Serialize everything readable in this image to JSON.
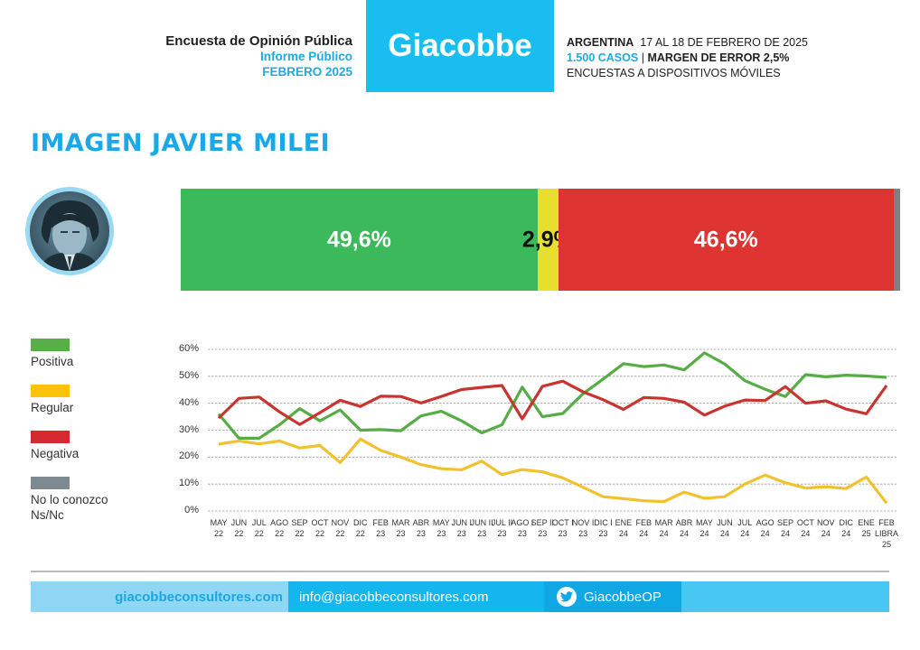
{
  "header": {
    "survey_title": "Encuesta de Opinión Pública",
    "report_type": "Informe Público",
    "report_date": "FEBRERO 2025",
    "brand": "Giacobbe",
    "country": "ARGENTINA",
    "field_dates": "17 AL 18 DE FEBRERO DE 2025",
    "cases": "1.500 CASOS",
    "separator": "|",
    "margin_error": "MARGEN DE ERROR 2,5%",
    "method": "ENCUESTAS A DISPOSITIVOS MÓVILES"
  },
  "page_title": "IMAGEN JAVIER MILEI",
  "colors": {
    "brand_blue": "#19bdf0",
    "positiva": "#3cb95a",
    "regular": "#e8de2e",
    "negativa": "#dd3431",
    "ns": "#808080",
    "line_positiva": "#56ad45",
    "line_regular": "#f2c12e",
    "line_negativa": "#c8342f"
  },
  "summary_bar": {
    "segments": [
      {
        "name": "Positiva",
        "value": 49.6,
        "label": "49,6%",
        "color": "#3cb95a",
        "text_color": "#ffffff"
      },
      {
        "name": "Regular",
        "value": 2.9,
        "label": "2,9%",
        "color": "#e8de2e",
        "text_color": "#111111"
      },
      {
        "name": "Negativa",
        "value": 46.6,
        "label": "46,6%",
        "color": "#dd3431",
        "text_color": "#ffffff"
      },
      {
        "name": "No lo conozco Ns/Nc",
        "value": 0.9,
        "label": "",
        "color": "#808080",
        "text_color": "#ffffff"
      }
    ]
  },
  "legend": [
    {
      "label": "Positiva",
      "color": "#5aae4a"
    },
    {
      "label": "Regular",
      "color": "#fbc30a"
    },
    {
      "label": "Negativa",
      "color": "#d42a2f"
    },
    {
      "label": "No lo conozco\nNs/Nc",
      "color": "#7d8a92"
    }
  ],
  "chart_data": {
    "type": "line",
    "title": "IMAGEN JAVIER MILEI",
    "xlabel": "",
    "ylabel": "",
    "ylim": [
      0,
      60
    ],
    "yticks": [
      "0%",
      "10%",
      "20%",
      "30%",
      "40%",
      "50%",
      "60%"
    ],
    "grid": true,
    "legend_position": "left",
    "categories": [
      [
        "MAY",
        "22"
      ],
      [
        "JUN",
        "22"
      ],
      [
        "JUL",
        "22"
      ],
      [
        "AGO",
        "22"
      ],
      [
        "SEP",
        "22"
      ],
      [
        "OCT",
        "22"
      ],
      [
        "NOV",
        "22"
      ],
      [
        "DIC",
        "22"
      ],
      [
        "FEB",
        "23"
      ],
      [
        "MAR",
        "23"
      ],
      [
        "ABR",
        "23"
      ],
      [
        "MAY",
        "23"
      ],
      [
        "JUN I",
        "23"
      ],
      [
        "JUN II",
        "23"
      ],
      [
        "JUL II",
        "23"
      ],
      [
        "AGO I",
        "23"
      ],
      [
        "SEP II",
        "23"
      ],
      [
        "OCT I",
        "23"
      ],
      [
        "NOV I",
        "23"
      ],
      [
        "DIC I",
        "23"
      ],
      [
        "ENE",
        "24"
      ],
      [
        "FEB",
        "24"
      ],
      [
        "MAR",
        "24"
      ],
      [
        "ABR",
        "24"
      ],
      [
        "MAY",
        "24"
      ],
      [
        "JUN",
        "24"
      ],
      [
        "JUL",
        "24"
      ],
      [
        "AGO",
        "24"
      ],
      [
        "SEP",
        "24"
      ],
      [
        "OCT",
        "24"
      ],
      [
        "NOV",
        "24"
      ],
      [
        "DIC",
        "24"
      ],
      [
        "ENE",
        "25"
      ],
      [
        "FEB",
        "LIBRA",
        "25"
      ]
    ],
    "series": [
      {
        "name": "Positiva",
        "color": "#56ad45",
        "values": [
          36,
          27,
          27,
          32,
          38,
          33.5,
          37.5,
          30,
          30.2,
          29.8,
          35.3,
          37,
          33.5,
          29,
          32,
          46,
          35,
          36.2,
          43.5,
          49,
          54.7,
          53.6,
          54.2,
          52.4,
          58.7,
          54.6,
          48.4,
          45.2,
          42.5,
          50.6,
          49.8,
          50.4,
          50.1,
          49.6
        ]
      },
      {
        "name": "Regular",
        "color": "#f2c12e",
        "values": [
          24.8,
          26,
          24.9,
          26,
          23.4,
          24.3,
          18,
          26.7,
          22.5,
          20,
          17.2,
          15.7,
          15.3,
          18.5,
          13.5,
          15.4,
          14.5,
          12.3,
          8.8,
          5.3,
          4.6,
          3.8,
          3.5,
          7,
          4.7,
          5.3,
          10,
          13.3,
          10.5,
          8.5,
          9,
          8.3,
          12.6,
          2.9
        ]
      },
      {
        "name": "Negativa",
        "color": "#c8342f",
        "values": [
          34.5,
          41.8,
          42.3,
          36.8,
          32.1,
          36.5,
          41.1,
          38.8,
          42.6,
          42.5,
          40.1,
          42.5,
          45.1,
          45.9,
          46.6,
          34.2,
          46.3,
          48.2,
          44.2,
          41.3,
          37.7,
          42.1,
          41.8,
          40.4,
          35.6,
          38.9,
          41.2,
          41,
          46.2,
          40,
          40.9,
          37.8,
          36.1,
          46.6
        ]
      }
    ]
  },
  "footer": {
    "website": "giacobbeconsultores.com",
    "email": "info@giacobbeconsultores.com",
    "twitter_handle": "GiacobbeOP",
    "twitter_icon": "twitter-icon"
  }
}
